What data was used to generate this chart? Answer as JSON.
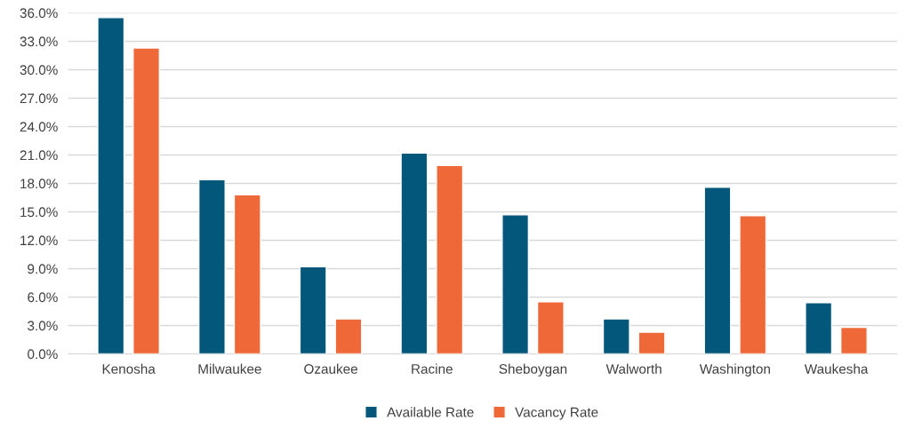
{
  "chart_data": {
    "type": "bar",
    "categories": [
      "Kenosha",
      "Milwaukee",
      "Ozaukee",
      "Racine",
      "Sheboygan",
      "Walworth",
      "Washington",
      "Waukesha"
    ],
    "series": [
      {
        "name": "Available Rate",
        "color": "#02577a",
        "values": [
          35.5,
          18.4,
          9.2,
          21.2,
          14.7,
          3.7,
          17.6,
          5.4
        ]
      },
      {
        "name": "Vacancy Rate",
        "color": "#ef6837",
        "values": [
          32.3,
          16.8,
          3.7,
          19.9,
          5.5,
          2.3,
          14.6,
          2.8
        ]
      }
    ],
    "ylim": [
      0,
      36
    ],
    "yticks": [
      {
        "value": 0,
        "label": "0.0%"
      },
      {
        "value": 3,
        "label": "3.0%"
      },
      {
        "value": 6,
        "label": "6.0%"
      },
      {
        "value": 9,
        "label": "9.0%"
      },
      {
        "value": 12,
        "label": "12.0%"
      },
      {
        "value": 15,
        "label": "15.0%"
      },
      {
        "value": 18,
        "label": "18.0%"
      },
      {
        "value": 21,
        "label": "21.0%"
      },
      {
        "value": 24,
        "label": "24.0%"
      },
      {
        "value": 27,
        "label": "27.0%"
      },
      {
        "value": 30,
        "label": "30.0%"
      },
      {
        "value": 33,
        "label": "33.0%"
      },
      {
        "value": 36,
        "label": "36.0%"
      }
    ],
    "grid": "y",
    "legend": "bottom"
  }
}
